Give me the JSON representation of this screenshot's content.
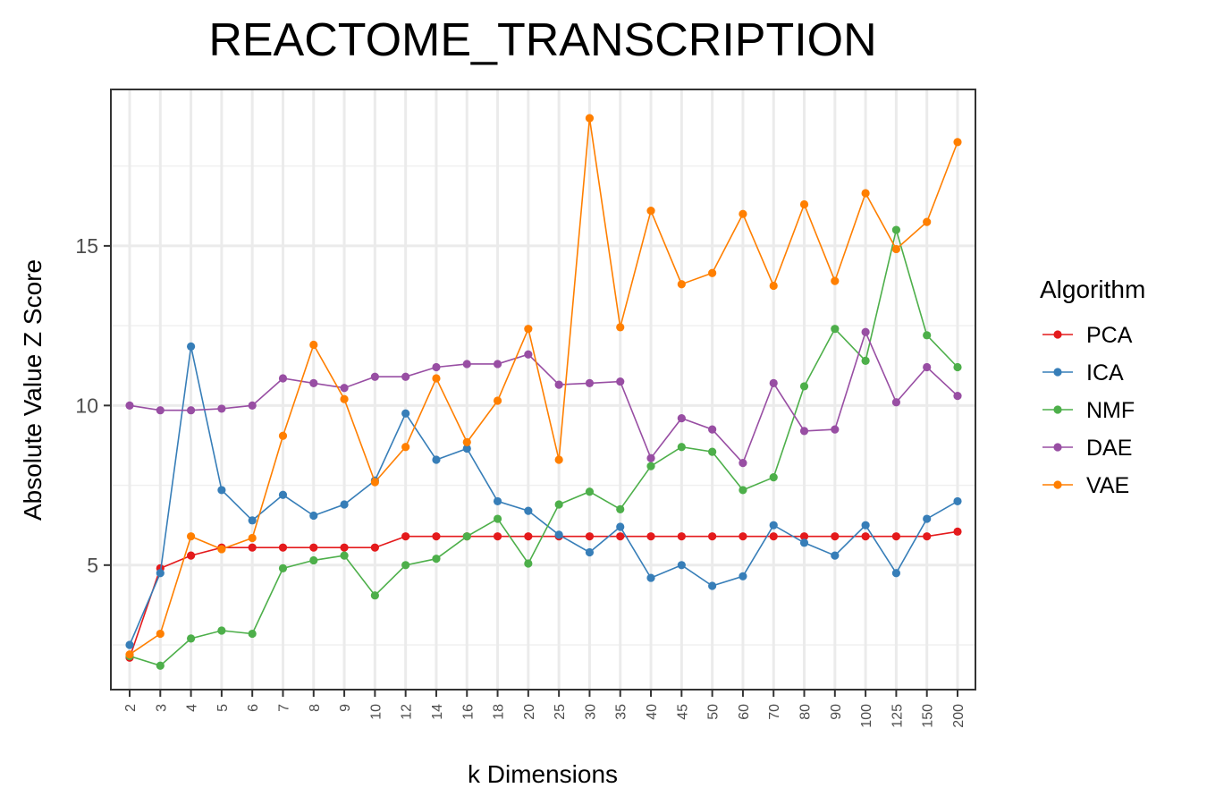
{
  "chart_data": {
    "type": "line",
    "title": "REACTOME_TRANSCRIPTION",
    "xlabel": "k Dimensions",
    "ylabel": "Absolute Value Z Score",
    "categories": [
      "2",
      "3",
      "4",
      "5",
      "6",
      "7",
      "8",
      "9",
      "10",
      "12",
      "14",
      "16",
      "18",
      "20",
      "25",
      "30",
      "35",
      "40",
      "45",
      "50",
      "60",
      "70",
      "80",
      "90",
      "100",
      "125",
      "150",
      "200"
    ],
    "ylim": [
      1.1,
      19.9
    ],
    "yticks": [
      5,
      10,
      15
    ],
    "grid": true,
    "legend": {
      "title": "Algorithm",
      "placement": "right"
    },
    "series": [
      {
        "name": "PCA",
        "color": "#e41a1c",
        "values": [
          2.1,
          4.9,
          5.3,
          5.55,
          5.55,
          5.55,
          5.55,
          5.55,
          5.55,
          5.9,
          5.9,
          5.9,
          5.9,
          5.9,
          5.9,
          5.9,
          5.9,
          5.9,
          5.9,
          5.9,
          5.9,
          5.9,
          5.9,
          5.9,
          5.9,
          5.9,
          5.9,
          6.05
        ]
      },
      {
        "name": "ICA",
        "color": "#377eb8",
        "values": [
          2.5,
          4.75,
          11.85,
          7.35,
          6.4,
          7.2,
          6.55,
          6.9,
          7.65,
          9.75,
          8.3,
          8.65,
          7.0,
          6.7,
          5.95,
          5.4,
          6.2,
          4.6,
          5.0,
          4.35,
          4.65,
          6.25,
          5.7,
          5.3,
          6.25,
          4.75,
          6.45,
          7.0
        ]
      },
      {
        "name": "NMF",
        "color": "#4daf4a",
        "values": [
          2.15,
          1.85,
          2.7,
          2.95,
          2.85,
          4.9,
          5.15,
          5.3,
          4.05,
          5.0,
          5.2,
          5.9,
          6.45,
          5.05,
          6.9,
          7.3,
          6.75,
          8.1,
          8.7,
          8.55,
          7.35,
          7.75,
          10.6,
          12.4,
          11.4,
          15.5,
          12.2,
          11.2
        ]
      },
      {
        "name": "DAE",
        "color": "#984ea3",
        "values": [
          10.0,
          9.85,
          9.85,
          9.9,
          10.0,
          10.85,
          10.7,
          10.55,
          10.9,
          10.9,
          11.2,
          11.3,
          11.3,
          11.6,
          10.65,
          10.7,
          10.75,
          8.35,
          9.6,
          9.25,
          8.2,
          10.7,
          9.2,
          9.25,
          12.3,
          10.1,
          11.2,
          10.3
        ]
      },
      {
        "name": "VAE",
        "color": "#ff7f00",
        "values": [
          2.2,
          2.85,
          5.9,
          5.5,
          5.85,
          9.05,
          11.9,
          10.2,
          7.6,
          8.7,
          10.85,
          8.85,
          10.15,
          12.4,
          8.3,
          19.0,
          12.45,
          16.1,
          13.8,
          14.15,
          16.0,
          13.75,
          16.3,
          13.9,
          16.65,
          14.9,
          15.75,
          18.25
        ]
      }
    ]
  }
}
